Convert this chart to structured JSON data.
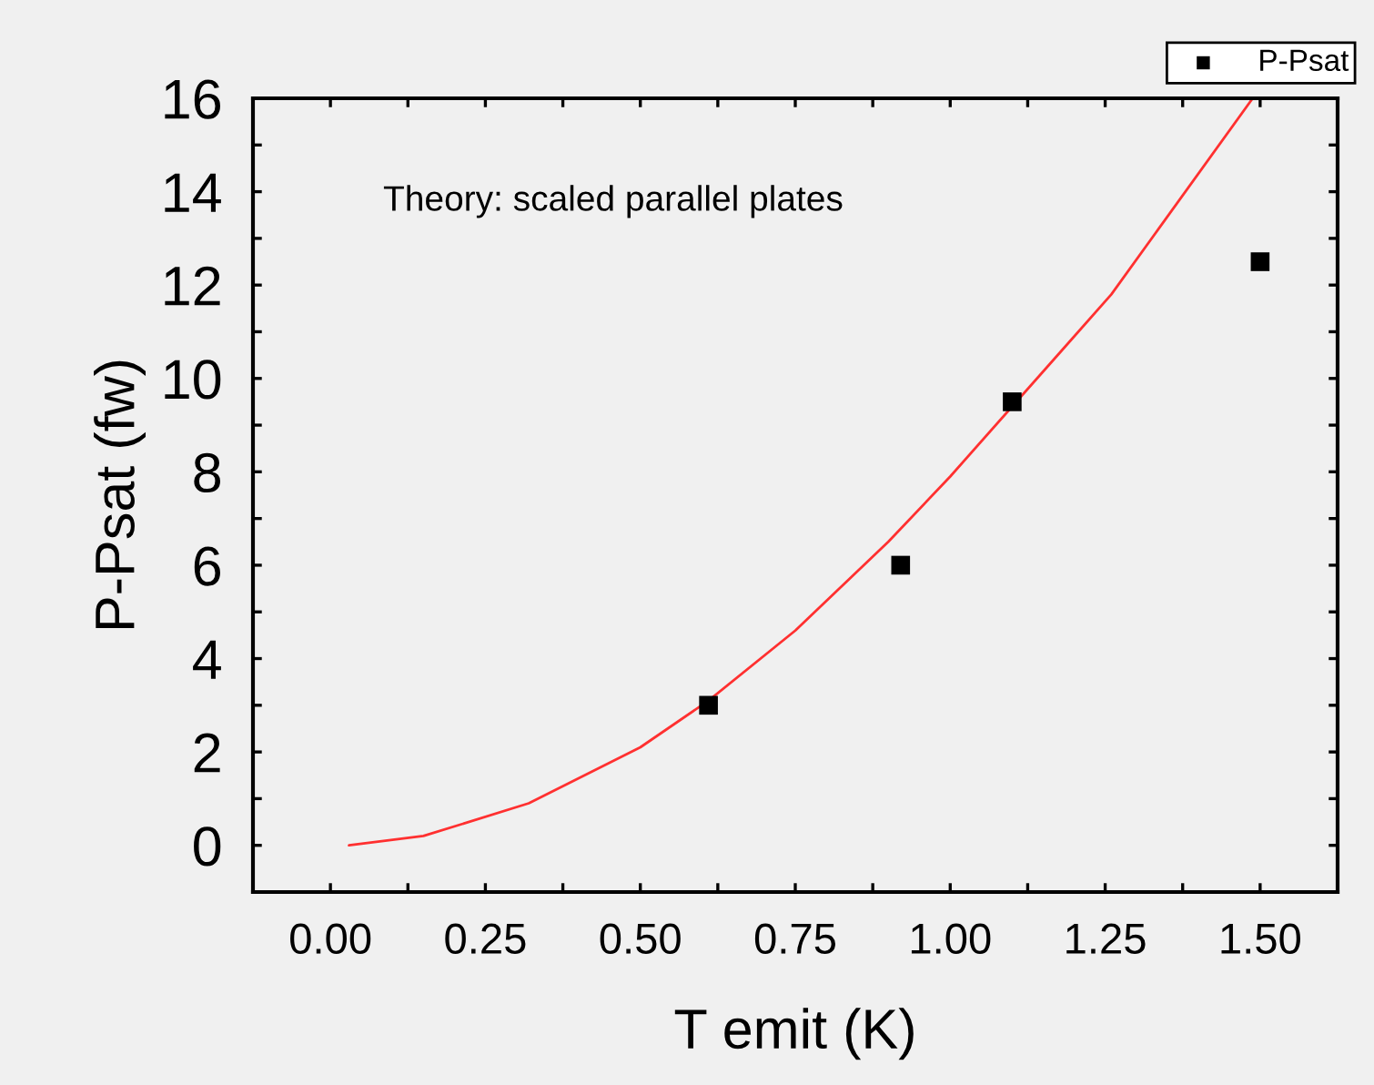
{
  "chart_data": {
    "type": "scatter",
    "xlabel": "T emit (K)",
    "ylabel": "P-Psat (fw)",
    "annotations": [
      "Theory: scaled parallel plates"
    ],
    "xlim": [
      -0.125,
      1.625
    ],
    "ylim": [
      -1,
      16
    ],
    "xticks": [
      {
        "value": 0,
        "label": "0.00"
      },
      {
        "value": 0.125,
        "label": null
      },
      {
        "value": 0.25,
        "label": "0.25"
      },
      {
        "value": 0.375,
        "label": null
      },
      {
        "value": 0.5,
        "label": "0.50"
      },
      {
        "value": 0.625,
        "label": null
      },
      {
        "value": 0.75,
        "label": "0.75"
      },
      {
        "value": 0.875,
        "label": null
      },
      {
        "value": 1,
        "label": "1.00"
      },
      {
        "value": 1.125,
        "label": null
      },
      {
        "value": 1.25,
        "label": "1.25"
      },
      {
        "value": 1.375,
        "label": null
      },
      {
        "value": 1.5,
        "label": "1.50"
      }
    ],
    "yticks": [
      0,
      {
        "value": 1,
        "label": null
      },
      2,
      {
        "value": 3,
        "label": null
      },
      4,
      {
        "value": 5,
        "label": null
      },
      6,
      {
        "value": 7,
        "label": null
      },
      8,
      {
        "value": 9,
        "label": null
      },
      10,
      {
        "value": 11,
        "label": null
      },
      12,
      {
        "value": 13,
        "label": null
      },
      14,
      {
        "value": 15,
        "label": null
      },
      16
    ],
    "grid": false,
    "legend": "top right",
    "series": [
      {
        "name": "P-Psat",
        "marker": "square",
        "color": "#000000",
        "x": [
          0.61,
          0.92,
          1.1,
          1.5
        ],
        "values": [
          3.0,
          6.0,
          9.5,
          12.5
        ]
      },
      {
        "type": "line",
        "marker": "none",
        "line_style": "solid",
        "color": "#ff3030",
        "x": [
          0.03,
          0.15,
          0.32,
          0.5,
          0.61,
          0.75,
          0.9,
          1.0,
          1.18,
          1.26,
          1.488
        ],
        "values": [
          0,
          0.2,
          0.9,
          2.1,
          3.1,
          4.6,
          6.5,
          7.9,
          10.6,
          11.8,
          16.0
        ]
      }
    ]
  }
}
